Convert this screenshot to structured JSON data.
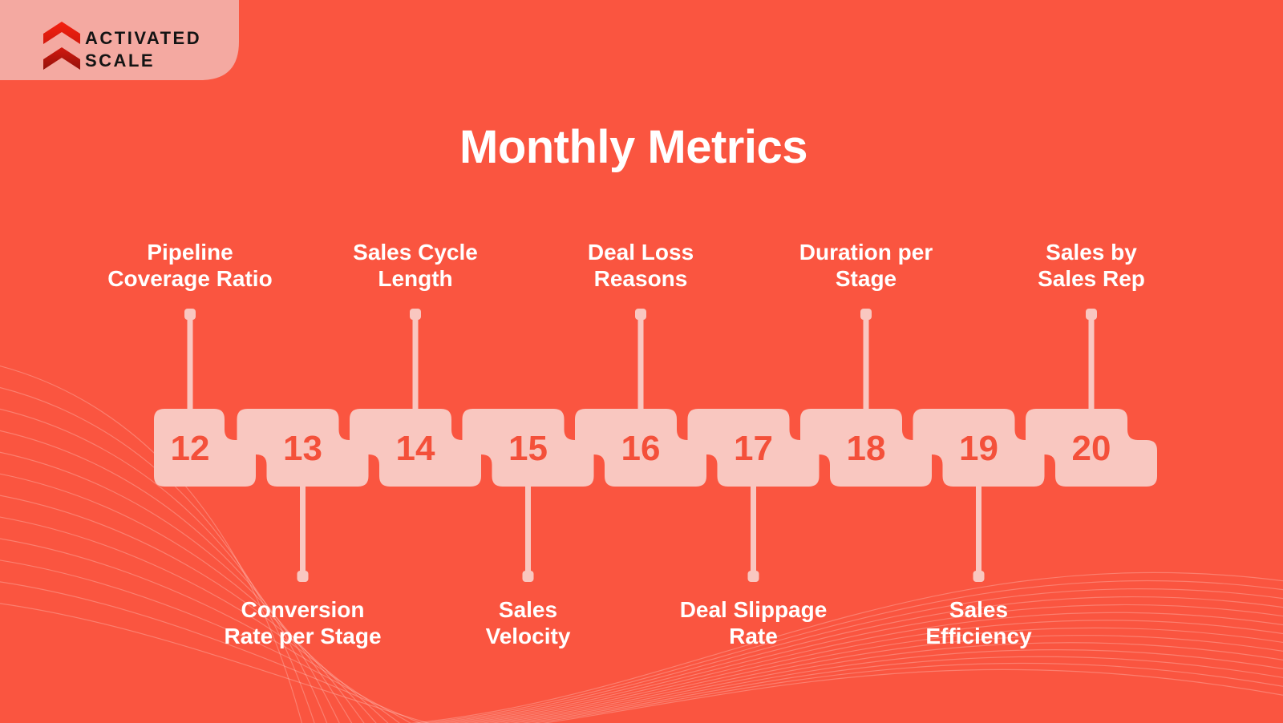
{
  "title": "Monthly Metrics",
  "logo": {
    "line1": "ACTIVATED",
    "line2": "SCALE"
  },
  "steps": [
    {
      "number": "12",
      "label_lines": [
        "Pipeline",
        "Coverage Ratio"
      ],
      "label_position": "top"
    },
    {
      "number": "13",
      "label_lines": [
        "Conversion",
        "Rate per Stage"
      ],
      "label_position": "bottom"
    },
    {
      "number": "14",
      "label_lines": [
        "Sales Cycle",
        "Length"
      ],
      "label_position": "top"
    },
    {
      "number": "15",
      "label_lines": [
        "Sales",
        "Velocity"
      ],
      "label_position": "bottom"
    },
    {
      "number": "16",
      "label_lines": [
        "Deal Loss",
        "Reasons"
      ],
      "label_position": "top"
    },
    {
      "number": "17",
      "label_lines": [
        "Deal Slippage",
        "Rate"
      ],
      "label_position": "bottom"
    },
    {
      "number": "18",
      "label_lines": [
        "Duration per",
        "Stage"
      ],
      "label_position": "top"
    },
    {
      "number": "19",
      "label_lines": [
        "Sales",
        "Efficiency"
      ],
      "label_position": "bottom"
    },
    {
      "number": "20",
      "label_lines": [
        "Sales by",
        "Sales Rep"
      ],
      "label_position": "top"
    }
  ],
  "colors": {
    "background": "#FA5540",
    "block": "#F9C7C0",
    "accent": "#F4503A",
    "label": "#FFFFFF",
    "logo_box": "#F4A9A1",
    "logo_text": "#141414",
    "chevron_top": "#F5200F",
    "chevron_mid": "#D2190E",
    "chevron_bottom": "#93120C",
    "decor": "#FFD3CD"
  }
}
